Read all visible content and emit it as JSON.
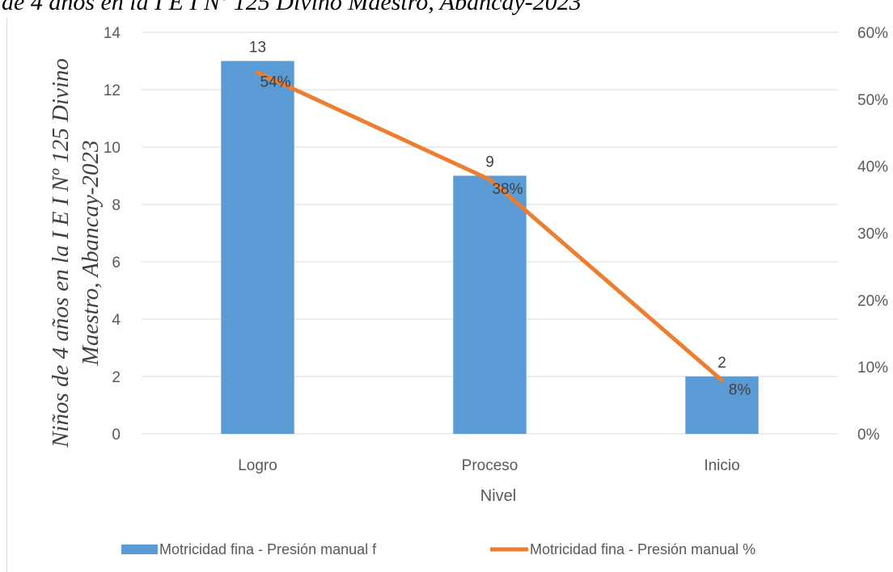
{
  "caption": "de 4 años en la I E I Nº 125 Divino Maestro, Abancay-2023",
  "chart_data": {
    "type": "bar",
    "categories": [
      "Logro",
      "Proceso",
      "Inicio"
    ],
    "series": [
      {
        "name": "Motricidad fina - Presión manual  f",
        "type": "bar",
        "axis": "left",
        "values": [
          13,
          9,
          2
        ],
        "labels": [
          "13",
          "9",
          "2"
        ],
        "color": "#5B9BD5"
      },
      {
        "name": "Motricidad fina - Presión manual  %",
        "type": "line",
        "axis": "right",
        "values": [
          0.54,
          0.38,
          0.08
        ],
        "labels": [
          "54%",
          "38%",
          "8%"
        ],
        "color": "#ED7D31"
      }
    ],
    "xlabel": "Nivel",
    "ylabel_line1": "Niños de 4 años en la I E I Nº 125 Divino",
    "ylabel_line2": "Maestro, Abancay-2023",
    "ylim": [
      0,
      14
    ],
    "yticks": [
      "0",
      "2",
      "4",
      "6",
      "8",
      "10",
      "12",
      "14"
    ],
    "y2lim": [
      0,
      0.6
    ],
    "y2ticks": [
      "0%",
      "10%",
      "20%",
      "30%",
      "40%",
      "50%",
      "60%"
    ],
    "grid": true,
    "legend_position": "bottom"
  }
}
